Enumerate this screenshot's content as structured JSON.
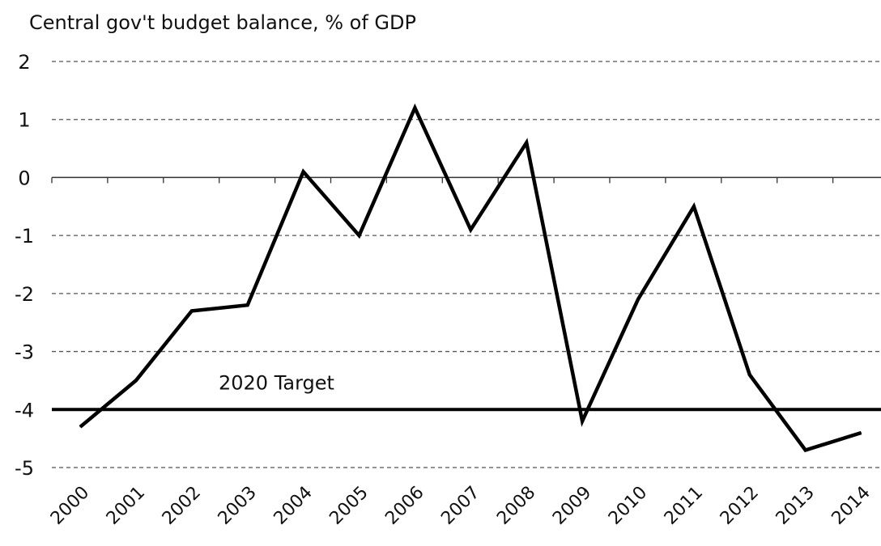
{
  "chart_data": {
    "type": "line",
    "title": "Central gov't budget balance, % of GDP",
    "xlabel": "",
    "ylabel": "",
    "categories": [
      "2000",
      "2001",
      "2002",
      "2003",
      "2004",
      "2005",
      "2006",
      "2007",
      "2008",
      "2009",
      "2010",
      "2011",
      "2012",
      "2013",
      "2014"
    ],
    "series": [
      {
        "values": [
          -4.3,
          -3.5,
          -2.3,
          -2.2,
          0.1,
          -1.0,
          1.2,
          -0.9,
          0.6,
          -4.2,
          -2.1,
          -0.5,
          -3.4,
          -4.7,
          -4.4
        ]
      }
    ],
    "ylim": [
      -5,
      2
    ],
    "yticks": [
      2,
      1,
      0,
      -1,
      -2,
      -3,
      -4,
      -5
    ],
    "grid": "horizontal-dashed",
    "reference_line": {
      "value": -4,
      "label": "2020 Target"
    },
    "colors": {
      "line": "#000000",
      "grid": "#555555"
    }
  }
}
